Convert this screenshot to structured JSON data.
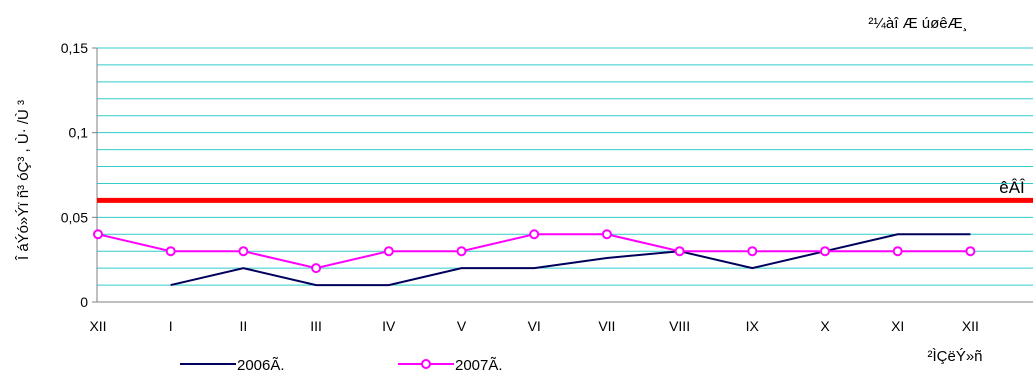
{
  "chart_data": {
    "type": "line",
    "title": "²¼àî Æ úøêÆ¸",
    "xlabel": "²ÌÇëÝ»ñ",
    "ylabel": "Î áÝó»Ýï ñ³ óÇ³ , Ù· /Ù ³",
    "categories": [
      "XII",
      "I",
      "II",
      "III",
      "IV",
      "V",
      "VI",
      "VII",
      "VIII",
      "IX",
      "X",
      "XI",
      "XII"
    ],
    "ylim": [
      0,
      0.15
    ],
    "yticks": [
      "0",
      "0,05",
      "0,1",
      "0,15"
    ],
    "grid": true,
    "legend_position": "bottom-left",
    "series": [
      {
        "name": "2006Ã.",
        "color": "#00005c",
        "marker": "none",
        "values": [
          null,
          0.01,
          0.02,
          0.01,
          0.01,
          0.02,
          0.02,
          0.026,
          0.03,
          0.02,
          0.03,
          0.04,
          0.04
        ]
      },
      {
        "name": "2007Ã.",
        "color": "#ff00ff",
        "marker": "circle",
        "values": [
          0.04,
          0.03,
          0.03,
          0.02,
          0.03,
          0.03,
          0.04,
          0.04,
          0.03,
          0.03,
          0.03,
          0.03,
          0.03
        ]
      }
    ],
    "reference_line": {
      "label": "êÂÎ",
      "value": 0.06,
      "color": "#ff0000"
    }
  }
}
